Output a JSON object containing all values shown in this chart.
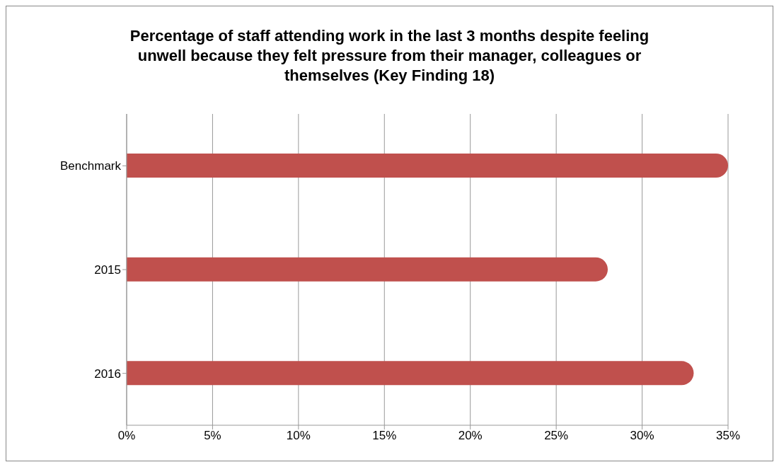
{
  "chart_data": {
    "type": "bar",
    "orientation": "horizontal",
    "title": "Percentage of staff attending work in the last 3 months despite feeling unwell because they felt pressure from their manager, colleagues or themselves (Key Finding 18)",
    "categories": [
      "Benchmark",
      "2015",
      "2016"
    ],
    "values": [
      35,
      28,
      33
    ],
    "color": "#c0504d",
    "xlim": [
      0,
      35
    ],
    "xticks": [
      {
        "value": 0,
        "label": "0%"
      },
      {
        "value": 5,
        "label": "5%"
      },
      {
        "value": 10,
        "label": "10%"
      },
      {
        "value": 15,
        "label": "15%"
      },
      {
        "value": 20,
        "label": "20%"
      },
      {
        "value": 25,
        "label": "25%"
      },
      {
        "value": 30,
        "label": "30%"
      },
      {
        "value": 35,
        "label": "35%"
      }
    ],
    "grid": "x",
    "legend": false
  }
}
